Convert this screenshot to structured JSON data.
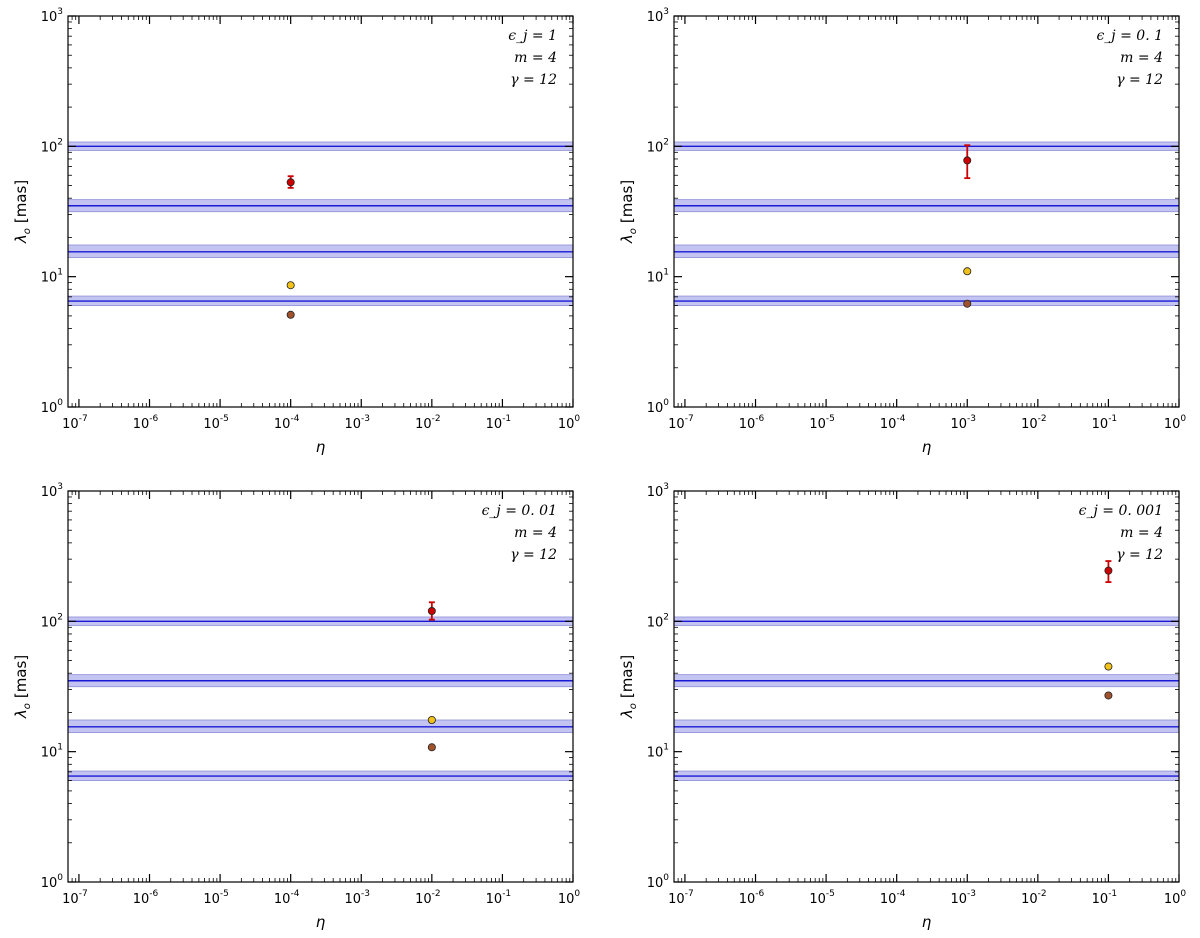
{
  "chart_data": [
    {
      "type": "scatter",
      "xlabel": "η",
      "ylabel": "λ",
      "ylabel_sub": "o",
      "ylabel_unit": "[mas]",
      "xscale": "log",
      "yscale": "log",
      "xlim": [
        7e-08,
        1
      ],
      "ylim": [
        1,
        1000
      ],
      "x_tick_exponents": [
        "-7",
        "-6",
        "-5",
        "-4",
        "-3",
        "-2",
        "-1",
        "0"
      ],
      "y_tick_exponents": [
        "0",
        "1",
        "2",
        "3"
      ],
      "tick_base": "10",
      "annotations": [
        "ϵ_j = 1",
        "m = 4",
        "γ = 12"
      ],
      "bands": [
        {
          "center": 100,
          "low": 93,
          "high": 108
        },
        {
          "center": 35,
          "low": 31.5,
          "high": 39
        },
        {
          "center": 15.5,
          "low": 14,
          "high": 17.5
        },
        {
          "center": 6.5,
          "low": 6.0,
          "high": 7.1
        }
      ],
      "points": [
        {
          "x": 0.0001,
          "y": 53,
          "err_low": 48,
          "err_high": 59,
          "color": "#cc0000"
        },
        {
          "x": 0.0001,
          "y": 8.6,
          "color": "#f2c21b"
        },
        {
          "x": 0.0001,
          "y": 5.1,
          "color": "#a0522d"
        }
      ]
    },
    {
      "type": "scatter",
      "xlabel": "η",
      "ylabel": "λ",
      "ylabel_sub": "o",
      "ylabel_unit": "[mas]",
      "xscale": "log",
      "yscale": "log",
      "xlim": [
        7e-08,
        1
      ],
      "ylim": [
        1,
        1000
      ],
      "x_tick_exponents": [
        "-7",
        "-6",
        "-5",
        "-4",
        "-3",
        "-2",
        "-1",
        "0"
      ],
      "y_tick_exponents": [
        "0",
        "1",
        "2",
        "3"
      ],
      "tick_base": "10",
      "annotations": [
        "ϵ_j = 0. 1",
        "m = 4",
        "γ = 12"
      ],
      "bands": [
        {
          "center": 100,
          "low": 93,
          "high": 108
        },
        {
          "center": 35,
          "low": 31.5,
          "high": 39
        },
        {
          "center": 15.5,
          "low": 14,
          "high": 17.5
        },
        {
          "center": 6.5,
          "low": 6.0,
          "high": 7.1
        }
      ],
      "points": [
        {
          "x": 0.001,
          "y": 78,
          "err_low": 57,
          "err_high": 102,
          "color": "#cc0000"
        },
        {
          "x": 0.001,
          "y": 11,
          "color": "#f2c21b"
        },
        {
          "x": 0.001,
          "y": 6.2,
          "color": "#a0522d"
        }
      ]
    },
    {
      "type": "scatter",
      "xlabel": "η",
      "ylabel": "λ",
      "ylabel_sub": "o",
      "ylabel_unit": "[mas]",
      "xscale": "log",
      "yscale": "log",
      "xlim": [
        7e-08,
        1
      ],
      "ylim": [
        1,
        1000
      ],
      "x_tick_exponents": [
        "-7",
        "-6",
        "-5",
        "-4",
        "-3",
        "-2",
        "-1",
        "0"
      ],
      "y_tick_exponents": [
        "0",
        "1",
        "2",
        "3"
      ],
      "tick_base": "10",
      "annotations": [
        "ϵ_j = 0. 01",
        "m = 4",
        "γ = 12"
      ],
      "bands": [
        {
          "center": 100,
          "low": 93,
          "high": 108
        },
        {
          "center": 35,
          "low": 31.5,
          "high": 39
        },
        {
          "center": 15.5,
          "low": 14,
          "high": 17.5
        },
        {
          "center": 6.5,
          "low": 6.0,
          "high": 7.1
        }
      ],
      "points": [
        {
          "x": 0.01,
          "y": 120,
          "err_low": 103,
          "err_high": 140,
          "color": "#cc0000"
        },
        {
          "x": 0.01,
          "y": 17.5,
          "color": "#f2c21b"
        },
        {
          "x": 0.01,
          "y": 10.8,
          "color": "#a0522d"
        }
      ]
    },
    {
      "type": "scatter",
      "xlabel": "η",
      "ylabel": "λ",
      "ylabel_sub": "o",
      "ylabel_unit": "[mas]",
      "xscale": "log",
      "yscale": "log",
      "xlim": [
        7e-08,
        1
      ],
      "ylim": [
        1,
        1000
      ],
      "x_tick_exponents": [
        "-7",
        "-6",
        "-5",
        "-4",
        "-3",
        "-2",
        "-1",
        "0"
      ],
      "y_tick_exponents": [
        "0",
        "1",
        "2",
        "3"
      ],
      "tick_base": "10",
      "annotations": [
        "ϵ_j = 0. 001",
        "m = 4",
        "γ = 12"
      ],
      "bands": [
        {
          "center": 100,
          "low": 93,
          "high": 108
        },
        {
          "center": 35,
          "low": 31.5,
          "high": 39
        },
        {
          "center": 15.5,
          "low": 14,
          "high": 17.5
        },
        {
          "center": 6.5,
          "low": 6.0,
          "high": 7.1
        }
      ],
      "points": [
        {
          "x": 0.1,
          "y": 245,
          "err_low": 200,
          "err_high": 290,
          "color": "#cc0000"
        },
        {
          "x": 0.1,
          "y": 45,
          "color": "#f2c21b"
        },
        {
          "x": 0.1,
          "y": 27,
          "color": "#a0522d"
        }
      ]
    }
  ],
  "colors": {
    "band_fill": "#c4c4f2",
    "band_edge": "#8f8fd9",
    "band_line": "#1a1ad6",
    "marker_edge": "#222222",
    "error_bar": "#cc0000"
  }
}
